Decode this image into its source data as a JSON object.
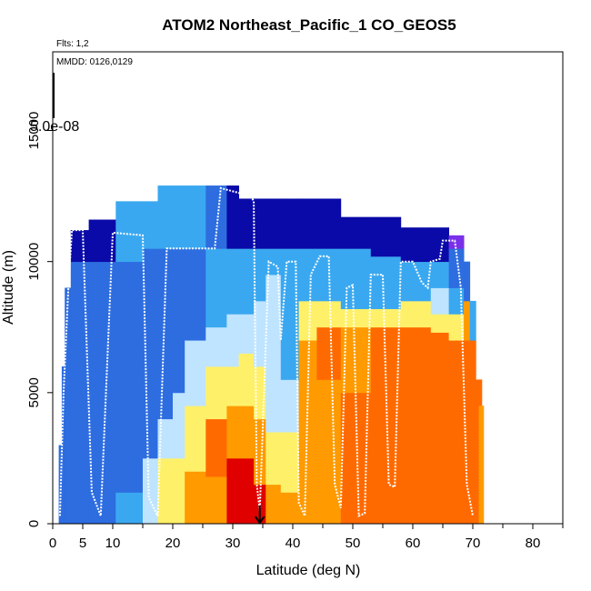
{
  "chart_data": {
    "type": "heatmap",
    "title": "ATOM2 Northeast_Pacific_1 CO_GEOS5",
    "annotations": {
      "flights": "Flts: 1,2",
      "dates": "MMDD: 0126,0129",
      "scale_label": "5.0e-08"
    },
    "xlabel": "Latitude (deg N)",
    "ylabel": "Altitude (m)",
    "xlim": [
      0,
      85
    ],
    "ylim": [
      0,
      18000
    ],
    "xticks": [
      0,
      5,
      10,
      20,
      30,
      40,
      50,
      60,
      70,
      80
    ],
    "xtick_labels": [
      "0",
      "5",
      "10",
      "20",
      "30",
      "40",
      "50",
      "60",
      "70",
      "80"
    ],
    "yticks": [
      0,
      5000,
      10000,
      15000
    ],
    "ytick_labels": [
      "0",
      "5000",
      "10000",
      "15000"
    ],
    "marker_latitude": 34.5,
    "grid": false,
    "colors": {
      "darkblue": "#0a0aa8",
      "blue": "#2d6de0",
      "lightblue": "#3aa8f0",
      "paleblue": "#bfe4ff",
      "yellow": "#fff06a",
      "orange": "#ff9a00",
      "deeporange": "#ff6a00",
      "red": "#e00000",
      "purple": "#7a30e8",
      "flight": "#ffffff"
    },
    "columns": [
      {
        "x0": 1.0,
        "x1": 2.0,
        "top": 3000,
        "layers": [
          [
            0,
            3000,
            "blue"
          ]
        ]
      },
      {
        "x0": 1.5,
        "x1": 2.5,
        "top": 6000,
        "layers": [
          [
            0,
            6000,
            "blue"
          ]
        ]
      },
      {
        "x0": 2.0,
        "x1": 3.0,
        "top": 9000,
        "layers": [
          [
            0,
            9000,
            "blue"
          ]
        ]
      },
      {
        "x0": 3.0,
        "x1": 6.0,
        "top": 11200,
        "layers": [
          [
            0,
            10000,
            "blue"
          ],
          [
            10000,
            11200,
            "darkblue"
          ]
        ]
      },
      {
        "x0": 6.0,
        "x1": 10.5,
        "top": 11600,
        "layers": [
          [
            0,
            10000,
            "blue"
          ],
          [
            10000,
            11600,
            "darkblue"
          ]
        ]
      },
      {
        "x0": 10.5,
        "x1": 15.0,
        "top": 12300,
        "layers": [
          [
            0,
            1200,
            "lightblue"
          ],
          [
            1200,
            10000,
            "blue"
          ],
          [
            10000,
            12300,
            "lightblue"
          ]
        ]
      },
      {
        "x0": 15.0,
        "x1": 17.5,
        "top": 12300,
        "layers": [
          [
            0,
            2500,
            "paleblue"
          ],
          [
            2500,
            10500,
            "blue"
          ],
          [
            10500,
            12300,
            "lightblue"
          ]
        ]
      },
      {
        "x0": 17.5,
        "x1": 20.0,
        "top": 12900,
        "layers": [
          [
            0,
            2500,
            "yellow"
          ],
          [
            2500,
            4000,
            "paleblue"
          ],
          [
            4000,
            10500,
            "blue"
          ],
          [
            10500,
            12900,
            "lightblue"
          ]
        ]
      },
      {
        "x0": 20.0,
        "x1": 22.0,
        "top": 12900,
        "layers": [
          [
            0,
            2500,
            "yellow"
          ],
          [
            2500,
            5000,
            "paleblue"
          ],
          [
            5000,
            10500,
            "blue"
          ],
          [
            10500,
            12900,
            "lightblue"
          ]
        ]
      },
      {
        "x0": 22.0,
        "x1": 25.5,
        "top": 12900,
        "layers": [
          [
            0,
            2000,
            "orange"
          ],
          [
            2000,
            4500,
            "yellow"
          ],
          [
            4500,
            7000,
            "paleblue"
          ],
          [
            7000,
            10500,
            "blue"
          ],
          [
            10500,
            12900,
            "lightblue"
          ]
        ]
      },
      {
        "x0": 25.5,
        "x1": 29.0,
        "top": 12900,
        "layers": [
          [
            0,
            1800,
            "orange"
          ],
          [
            1800,
            4000,
            "deeporange"
          ],
          [
            4000,
            6000,
            "yellow"
          ],
          [
            6000,
            7500,
            "paleblue"
          ],
          [
            7500,
            10500,
            "lightblue"
          ],
          [
            10500,
            12900,
            "blue"
          ]
        ]
      },
      {
        "x0": 29.0,
        "x1": 31.0,
        "top": 12900,
        "layers": [
          [
            0,
            1000,
            "red"
          ],
          [
            1000,
            2500,
            "red"
          ],
          [
            2500,
            4500,
            "orange"
          ],
          [
            4500,
            6000,
            "yellow"
          ],
          [
            6000,
            8000,
            "paleblue"
          ],
          [
            8000,
            10500,
            "lightblue"
          ],
          [
            10500,
            12900,
            "darkblue"
          ]
        ]
      },
      {
        "x0": 31.0,
        "x1": 33.5,
        "top": 12400,
        "layers": [
          [
            0,
            2500,
            "red"
          ],
          [
            2500,
            4500,
            "orange"
          ],
          [
            4500,
            6500,
            "yellow"
          ],
          [
            6500,
            8000,
            "paleblue"
          ],
          [
            8000,
            10500,
            "lightblue"
          ],
          [
            10500,
            12400,
            "darkblue"
          ]
        ]
      },
      {
        "x0": 33.5,
        "x1": 35.5,
        "top": 12400,
        "layers": [
          [
            0,
            1500,
            "red"
          ],
          [
            1500,
            4000,
            "orange"
          ],
          [
            4000,
            6000,
            "yellow"
          ],
          [
            6000,
            8500,
            "paleblue"
          ],
          [
            8500,
            10500,
            "lightblue"
          ],
          [
            10500,
            12400,
            "darkblue"
          ]
        ]
      },
      {
        "x0": 35.5,
        "x1": 38.0,
        "top": 12400,
        "layers": [
          [
            0,
            1500,
            "orange"
          ],
          [
            1500,
            3500,
            "yellow"
          ],
          [
            3500,
            9500,
            "paleblue"
          ],
          [
            9500,
            10500,
            "lightblue"
          ],
          [
            10500,
            12400,
            "darkblue"
          ]
        ]
      },
      {
        "x0": 38.0,
        "x1": 41.0,
        "top": 12400,
        "layers": [
          [
            0,
            1200,
            "orange"
          ],
          [
            1200,
            3500,
            "yellow"
          ],
          [
            3500,
            5500,
            "paleblue"
          ],
          [
            5500,
            10500,
            "lightblue"
          ],
          [
            10500,
            12400,
            "darkblue"
          ]
        ]
      },
      {
        "x0": 41.0,
        "x1": 44.0,
        "top": 12400,
        "layers": [
          [
            0,
            7000,
            "orange"
          ],
          [
            7000,
            8500,
            "yellow"
          ],
          [
            8500,
            10500,
            "lightblue"
          ],
          [
            10500,
            12400,
            "darkblue"
          ]
        ]
      },
      {
        "x0": 44.0,
        "x1": 48.0,
        "top": 12400,
        "layers": [
          [
            0,
            5500,
            "orange"
          ],
          [
            5500,
            7500,
            "deeporange"
          ],
          [
            7500,
            8500,
            "yellow"
          ],
          [
            8500,
            10500,
            "lightblue"
          ],
          [
            10500,
            12400,
            "darkblue"
          ]
        ]
      },
      {
        "x0": 48.0,
        "x1": 53.0,
        "top": 11700,
        "layers": [
          [
            0,
            5000,
            "deeporange"
          ],
          [
            5000,
            7500,
            "orange"
          ],
          [
            7500,
            8200,
            "yellow"
          ],
          [
            8200,
            10500,
            "lightblue"
          ],
          [
            10500,
            11700,
            "darkblue"
          ]
        ]
      },
      {
        "x0": 53.0,
        "x1": 58.0,
        "top": 11700,
        "layers": [
          [
            0,
            7500,
            "deeporange"
          ],
          [
            7500,
            8200,
            "yellow"
          ],
          [
            8200,
            10200,
            "lightblue"
          ],
          [
            10200,
            11700,
            "darkblue"
          ]
        ]
      },
      {
        "x0": 58.0,
        "x1": 63.0,
        "top": 11300,
        "layers": [
          [
            0,
            7500,
            "deeporange"
          ],
          [
            7500,
            8500,
            "yellow"
          ],
          [
            8500,
            10000,
            "lightblue"
          ],
          [
            10000,
            11300,
            "darkblue"
          ]
        ]
      },
      {
        "x0": 63.0,
        "x1": 66.0,
        "top": 11300,
        "layers": [
          [
            0,
            7300,
            "deeporange"
          ],
          [
            7300,
            8000,
            "yellow"
          ],
          [
            8000,
            9000,
            "paleblue"
          ],
          [
            9000,
            10000,
            "lightblue"
          ],
          [
            10000,
            11300,
            "darkblue"
          ]
        ]
      },
      {
        "x0": 66.0,
        "x1": 68.5,
        "top": 11000,
        "layers": [
          [
            0,
            7000,
            "deeporange"
          ],
          [
            7000,
            8000,
            "yellow"
          ],
          [
            8000,
            9000,
            "lightblue"
          ],
          [
            9000,
            10500,
            "blue"
          ],
          [
            10500,
            11000,
            "purple"
          ]
        ]
      },
      {
        "x0": 68.5,
        "x1": 69.5,
        "top": 10000,
        "layers": [
          [
            0,
            7000,
            "deeporange"
          ],
          [
            7000,
            8500,
            "orange"
          ],
          [
            8500,
            10000,
            "blue"
          ]
        ]
      },
      {
        "x0": 69.5,
        "x1": 70.5,
        "top": 8500,
        "layers": [
          [
            0,
            7000,
            "deeporange"
          ],
          [
            7000,
            8500,
            "lightblue"
          ]
        ]
      },
      {
        "x0": 70.5,
        "x1": 71.5,
        "top": 5500,
        "layers": [
          [
            0,
            5500,
            "deeporange"
          ]
        ]
      },
      {
        "x0": 71.0,
        "x1": 71.8,
        "top": 4500,
        "layers": [
          [
            0,
            4500,
            "orange"
          ]
        ]
      }
    ],
    "flight_path": [
      [
        1.2,
        300
      ],
      [
        1.8,
        5000
      ],
      [
        2.6,
        9000
      ],
      [
        3.2,
        11200
      ],
      [
        5.0,
        11200
      ],
      [
        6.5,
        1200
      ],
      [
        8.0,
        300
      ],
      [
        10.0,
        11100
      ],
      [
        15.0,
        11000
      ],
      [
        16.0,
        1000
      ],
      [
        17.5,
        300
      ],
      [
        19.0,
        10500
      ],
      [
        27.0,
        10500
      ],
      [
        28.0,
        12800
      ],
      [
        33.0,
        12500
      ],
      [
        33.5,
        12300
      ],
      [
        34.0,
        1500
      ],
      [
        34.5,
        500
      ],
      [
        36.0,
        10000
      ],
      [
        37.5,
        9800
      ],
      [
        38.0,
        7000
      ],
      [
        39.0,
        10000
      ],
      [
        40.5,
        10000
      ],
      [
        41.0,
        800
      ],
      [
        42.0,
        300
      ],
      [
        43.0,
        9500
      ],
      [
        44.5,
        10200
      ],
      [
        46.0,
        10200
      ],
      [
        47.0,
        1500
      ],
      [
        48.0,
        600
      ],
      [
        49.0,
        9000
      ],
      [
        50.0,
        9100
      ],
      [
        51.0,
        300
      ],
      [
        52.0,
        400
      ],
      [
        53.0,
        9500
      ],
      [
        55.0,
        9500
      ],
      [
        56.0,
        1500
      ],
      [
        57.0,
        1400
      ],
      [
        58.0,
        10000
      ],
      [
        60.0,
        10000
      ],
      [
        61.5,
        9200
      ],
      [
        62.5,
        9000
      ],
      [
        63.0,
        10000
      ],
      [
        64.5,
        10100
      ],
      [
        65.0,
        10800
      ],
      [
        67.0,
        10800
      ],
      [
        68.0,
        9000
      ],
      [
        69.0,
        1500
      ],
      [
        70.0,
        300
      ]
    ]
  }
}
